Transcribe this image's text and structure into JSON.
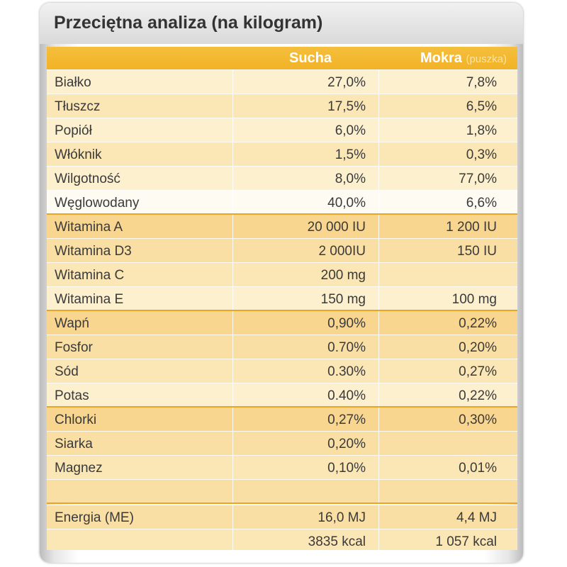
{
  "title": "Przeciętna analiza (na kilogram)",
  "columns": {
    "dry": "Sucha",
    "wet": "Mokra",
    "wet_note": "(puszka)"
  },
  "rows": [
    {
      "label": "Białko",
      "dry": "27,0%",
      "wet": "7,8%"
    },
    {
      "label": "Tłuszcz",
      "dry": "17,5%",
      "wet": "6,5%"
    },
    {
      "label": "Popiół",
      "dry": "6,0%",
      "wet": "1,8%"
    },
    {
      "label": "Włóknik",
      "dry": "1,5%",
      "wet": "0,3%"
    },
    {
      "label": "Wilgotność",
      "dry": "8,0%",
      "wet": "77,0%"
    },
    {
      "label": "Węglowodany",
      "dry": "40,0%",
      "wet": "6,6%"
    },
    {
      "label": "Witamina A",
      "dry": "20 000 IU",
      "wet": "1 200 IU"
    },
    {
      "label": "Witamina D3",
      "dry": "2 000IU",
      "wet": "150 IU"
    },
    {
      "label": "Witamina C",
      "dry": "200 mg",
      "wet": ""
    },
    {
      "label": "Witamina E",
      "dry": "150 mg",
      "wet": "100 mg"
    },
    {
      "label": "Wapń",
      "dry": "0,90%",
      "wet": "0,22%"
    },
    {
      "label": "Fosfor",
      "dry": "0.70%",
      "wet": "0,20%"
    },
    {
      "label": "Sód",
      "dry": "0.30%",
      "wet": "0,27%"
    },
    {
      "label": "Potas",
      "dry": "0.40%",
      "wet": "0,22%"
    },
    {
      "label": "Chlorki",
      "dry": "0,27%",
      "wet": "0,30%"
    },
    {
      "label": "Siarka",
      "dry": "0,20%",
      "wet": ""
    },
    {
      "label": "Magnez",
      "dry": "0,10%",
      "wet": "0,01%"
    },
    {
      "label": "",
      "dry": "",
      "wet": ""
    },
    {
      "label": "Energia (ME)",
      "dry": "16,0 MJ",
      "wet": "4,4 MJ"
    },
    {
      "label": "",
      "dry": "3835 kcal",
      "wet": "1 057 kcal"
    }
  ]
}
